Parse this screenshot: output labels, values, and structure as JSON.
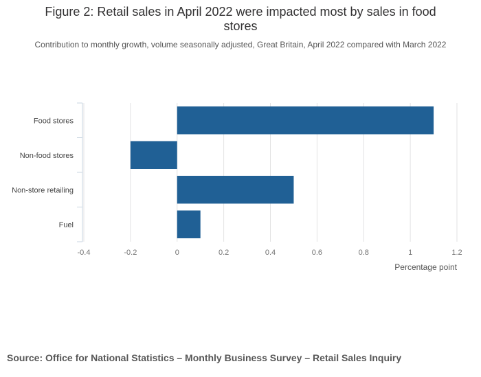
{
  "chart_data": {
    "type": "bar",
    "orientation": "horizontal",
    "title": "Figure 2: Retail sales in April 2022 were impacted most by sales in food stores",
    "subtitle": "Contribution to monthly growth, volume seasonally adjusted, Great Britain, April 2022 compared with March 2022",
    "categories": [
      "Food stores",
      "Non-food stores",
      "Non-store retailing",
      "Fuel"
    ],
    "values": [
      1.1,
      -0.2,
      0.5,
      0.1
    ],
    "xlabel": "Percentage point",
    "ylabel": "",
    "xlim": [
      -0.4,
      1.2
    ],
    "xticks": [
      -0.4,
      -0.2,
      0,
      0.2,
      0.4,
      0.6,
      0.8,
      1,
      1.2
    ],
    "xtick_labels": [
      "-0.4",
      "-0.2",
      "0",
      "0.2",
      "0.4",
      "0.6",
      "0.8",
      "1",
      "1.2"
    ],
    "grid": true,
    "bar_color": "#206095",
    "grid_color": "#e2e2e3",
    "axis_color": "#c8d4e0"
  },
  "source": "Source: Office for National Statistics – Monthly Business Survey – Retail Sales Inquiry"
}
